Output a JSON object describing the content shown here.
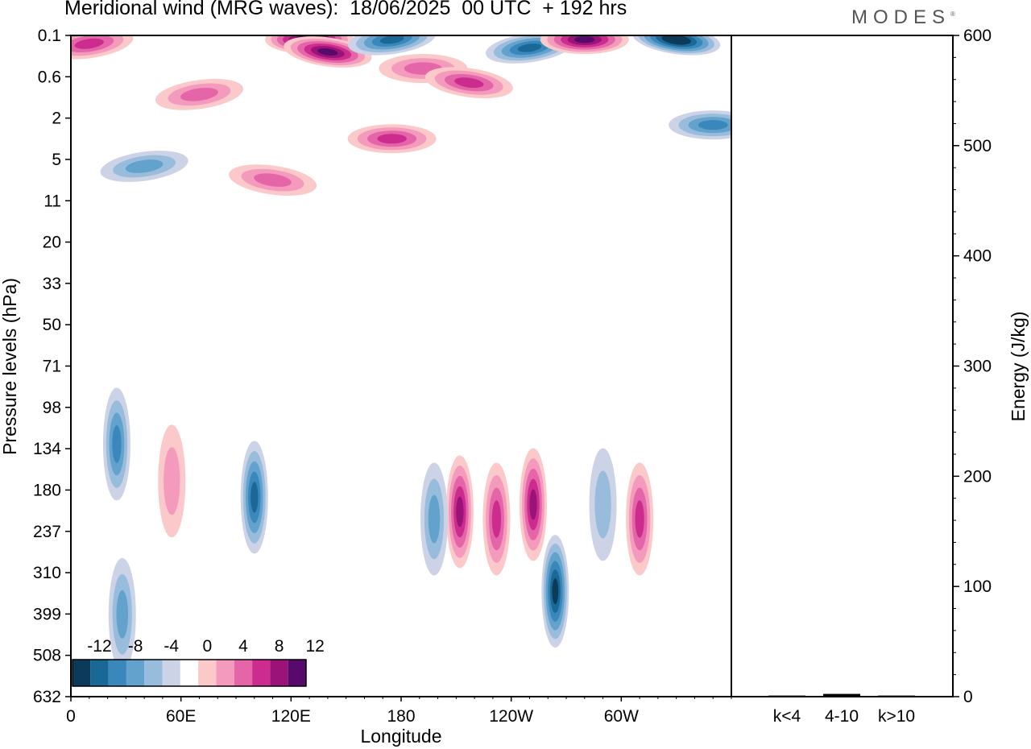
{
  "header": {
    "title": "Meridional wind (MRG waves):  18/06/2025  00 UTC  + 192 hrs",
    "logo": "MODES",
    "logo_mark": "®"
  },
  "chart_data": [
    {
      "type": "heatmap",
      "variable": "Meridional wind",
      "wave_type": "MRG waves",
      "date": "18/06/2025",
      "time": "00 UTC",
      "lead": "+ 192 hrs",
      "xlabel": "Longitude",
      "ylabel": "Pressure levels (hPa)",
      "x_ticks": [
        "0",
        "60E",
        "120E",
        "180",
        "120W",
        "60W"
      ],
      "x_tick_values": [
        0,
        60,
        120,
        180,
        240,
        300
      ],
      "xlim": [
        0,
        360
      ],
      "y_ticks": [
        "0.1",
        "0.6",
        "2",
        "5",
        "11",
        "20",
        "33",
        "50",
        "71",
        "98",
        "134",
        "180",
        "237",
        "310",
        "399",
        "508",
        "632"
      ],
      "colorbar": {
        "labels": [
          "-12",
          "-8",
          "-4",
          "0",
          "4",
          "8",
          "12"
        ],
        "levels": [
          -14,
          -12,
          -10,
          -8,
          -6,
          -4,
          -2,
          2,
          4,
          6,
          8,
          10,
          12,
          14
        ],
        "colors": [
          "#0b3a5a",
          "#1a6896",
          "#3a87bc",
          "#62a2cc",
          "#98bddc",
          "#cdd3e7",
          "#ffffff",
          "#fbc9c9",
          "#f39abd",
          "#e566a8",
          "#cc2c8e",
          "#9b1278",
          "#560a6a"
        ]
      },
      "features": [
        {
          "lon": 10,
          "plev": 0.2,
          "value": 9
        },
        {
          "lon": 130,
          "plev": 0.15,
          "value": 14
        },
        {
          "lon": 140,
          "plev": 0.3,
          "value": 13
        },
        {
          "lon": 175,
          "plev": 0.15,
          "value": -10
        },
        {
          "lon": 192,
          "plev": 0.5,
          "value": 6
        },
        {
          "lon": 217,
          "plev": 0.8,
          "value": 9
        },
        {
          "lon": 250,
          "plev": 0.25,
          "value": -11
        },
        {
          "lon": 280,
          "plev": 0.15,
          "value": 13
        },
        {
          "lon": 330,
          "plev": 0.15,
          "value": -14
        },
        {
          "lon": 70,
          "plev": 1.2,
          "value": 6
        },
        {
          "lon": 175,
          "plev": 3.5,
          "value": 9
        },
        {
          "lon": 110,
          "plev": 8,
          "value": 6
        },
        {
          "lon": 40,
          "plev": 6,
          "value": -6
        },
        {
          "lon": 350,
          "plev": 2.5,
          "value": -8
        },
        {
          "lon": 25,
          "plev": 130,
          "value": -8
        },
        {
          "lon": 55,
          "plev": 170,
          "value": 5
        },
        {
          "lon": 100,
          "plev": 190,
          "value": -10
        },
        {
          "lon": 212,
          "plev": 210,
          "value": 10
        },
        {
          "lon": 232,
          "plev": 220,
          "value": 8
        },
        {
          "lon": 264,
          "plev": 350,
          "value": -12
        },
        {
          "lon": 252,
          "plev": 200,
          "value": 10
        },
        {
          "lon": 310,
          "plev": 220,
          "value": 9
        },
        {
          "lon": 290,
          "plev": 200,
          "value": -5
        },
        {
          "lon": 28,
          "plev": 400,
          "value": -6
        },
        {
          "lon": 198,
          "plev": 220,
          "value": -6
        }
      ]
    },
    {
      "type": "bar",
      "categories": [
        "k<4",
        "4-10",
        "k>10"
      ],
      "values": [
        1.0,
        2.5,
        1.0
      ],
      "ylabel": "Energy (J/kg)",
      "ylim": [
        0,
        600
      ],
      "y_ticks": [
        "0",
        "100",
        "200",
        "300",
        "400",
        "500",
        "600"
      ]
    }
  ]
}
